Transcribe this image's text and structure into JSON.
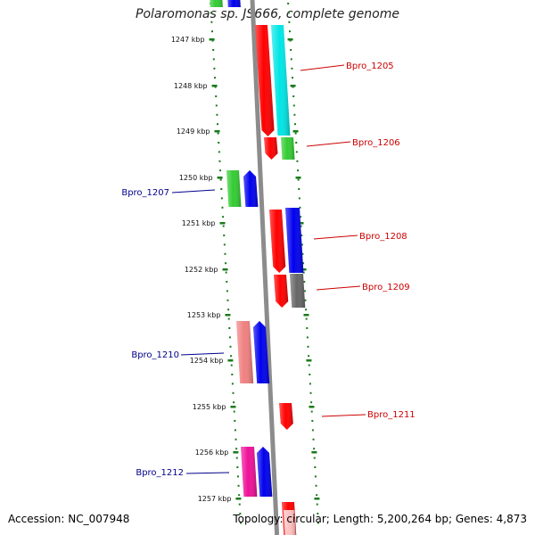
{
  "title": "Polaromonas sp. JS666, complete genome",
  "accession_text": "Accession: NC_007948",
  "stats_text": "Topology: circular; Length: 5,200,264 bp; Genes: 4,873",
  "tick_labels": [
    "1247 kbp",
    "1248 kbp",
    "1249 kbp",
    "1250 kbp",
    "1251 kbp",
    "1252 kbp",
    "1253 kbp",
    "1254 kbp",
    "1255 kbp",
    "1256 kbp",
    "1257 kbp"
  ],
  "gene_labels": [
    {
      "text": "Bpro_1205",
      "color": "#cc0000"
    },
    {
      "text": "Bpro_1206",
      "color": "#cc0000"
    },
    {
      "text": "Bpro_1207",
      "color": "#00008b"
    },
    {
      "text": "Bpro_1208",
      "color": "#cc0000"
    },
    {
      "text": "Bpro_1209",
      "color": "#cc0000"
    },
    {
      "text": "Bpro_1210",
      "color": "#00008b"
    },
    {
      "text": "Bpro_1211",
      "color": "#cc0000"
    },
    {
      "text": "Bpro_1212",
      "color": "#00008b"
    }
  ],
  "colors": {
    "backbone": "#8c8c8c",
    "tick": "#1a7a1a",
    "red": "#ff0000",
    "cyan": "#00e5e5",
    "green": "#33cc33",
    "blue": "#0000ee",
    "gray": "#666666",
    "salmon": "#f08080",
    "magenta": "#ee1199",
    "pink": "#ffc0c0"
  }
}
